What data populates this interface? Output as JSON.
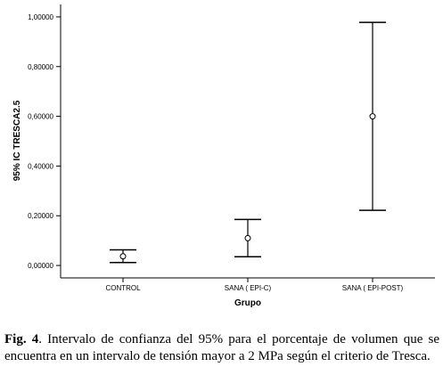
{
  "chart_data": {
    "type": "errorbar",
    "ylabel": "95% IC TRESCA2.5",
    "xlabel": "Grupo",
    "categories": [
      "CONTROL",
      "SANA ( EPI-C)",
      "SANA ( EPI-POST)"
    ],
    "mean": [
      0.037,
      0.11,
      0.6
    ],
    "lower": [
      0.012,
      0.035,
      0.222
    ],
    "upper": [
      0.063,
      0.185,
      0.978
    ],
    "ylim": [
      -0.05,
      1.05
    ],
    "yticks": [
      0.0,
      0.2,
      0.4,
      0.6,
      0.8,
      1.0
    ],
    "yticklabels": [
      "0,00000",
      "0,20000",
      "0,40000",
      "0,60000",
      "0,80000",
      "1,00000"
    ],
    "grid": false
  },
  "caption": {
    "label": "Fig. 4",
    "text": ".  Intervalo de confianza del 95% para el porcentaje de volumen que se encuentra en un intervalo de tensión mayor a 2 MPa según el criterio de Tresca."
  }
}
